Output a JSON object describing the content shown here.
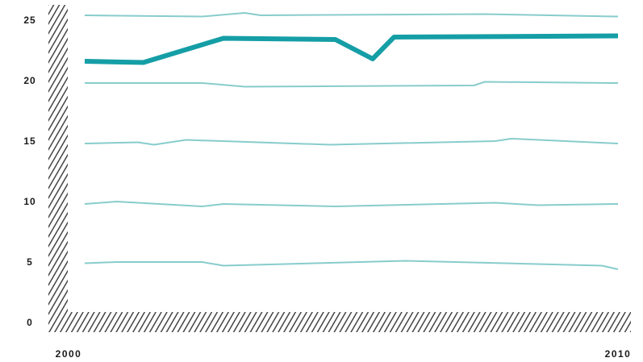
{
  "chart_data": {
    "type": "line",
    "title": "",
    "xlabel": "",
    "ylabel": "",
    "xlim": [
      2000,
      2010
    ],
    "ylim": [
      0,
      26
    ],
    "y_ticks": [
      "0",
      "5",
      "10",
      "15",
      "20",
      "25"
    ],
    "x_ticks": [
      "2000",
      "2010"
    ],
    "grid": false,
    "colors": {
      "background_series": "#88cccc",
      "highlight_series": "#159ea6",
      "axis_hatch": "#444444"
    },
    "series": [
      {
        "highlight": false,
        "points": [
          [
            2000,
            25.4
          ],
          [
            2002.2,
            25.3
          ],
          [
            2003.0,
            25.6
          ],
          [
            2003.3,
            25.4
          ],
          [
            2007.5,
            25.5
          ],
          [
            2010,
            25.3
          ]
        ]
      },
      {
        "highlight": true,
        "points": [
          [
            2000,
            21.6
          ],
          [
            2001.1,
            21.5
          ],
          [
            2002.6,
            23.5
          ],
          [
            2004.7,
            23.4
          ],
          [
            2005.4,
            21.8
          ],
          [
            2005.8,
            23.6
          ],
          [
            2010,
            23.7
          ]
        ]
      },
      {
        "highlight": false,
        "points": [
          [
            2000,
            19.8
          ],
          [
            2002.2,
            19.8
          ],
          [
            2003.0,
            19.5
          ],
          [
            2007.3,
            19.6
          ],
          [
            2007.5,
            19.9
          ],
          [
            2010,
            19.8
          ]
        ]
      },
      {
        "highlight": false,
        "points": [
          [
            2000,
            14.8
          ],
          [
            2001.0,
            14.9
          ],
          [
            2001.3,
            14.7
          ],
          [
            2001.9,
            15.1
          ],
          [
            2004.6,
            14.7
          ],
          [
            2007.7,
            15.0
          ],
          [
            2008.0,
            15.2
          ],
          [
            2010,
            14.8
          ]
        ]
      },
      {
        "highlight": false,
        "points": [
          [
            2000,
            9.8
          ],
          [
            2000.6,
            10.0
          ],
          [
            2002.2,
            9.6
          ],
          [
            2002.6,
            9.8
          ],
          [
            2004.7,
            9.6
          ],
          [
            2007.7,
            9.9
          ],
          [
            2008.5,
            9.7
          ],
          [
            2010,
            9.8
          ]
        ]
      },
      {
        "highlight": false,
        "points": [
          [
            2000,
            4.9
          ],
          [
            2000.6,
            5.0
          ],
          [
            2002.2,
            5.0
          ],
          [
            2002.6,
            4.7
          ],
          [
            2006.0,
            5.1
          ],
          [
            2009.7,
            4.7
          ],
          [
            2010,
            4.4
          ]
        ]
      }
    ]
  }
}
